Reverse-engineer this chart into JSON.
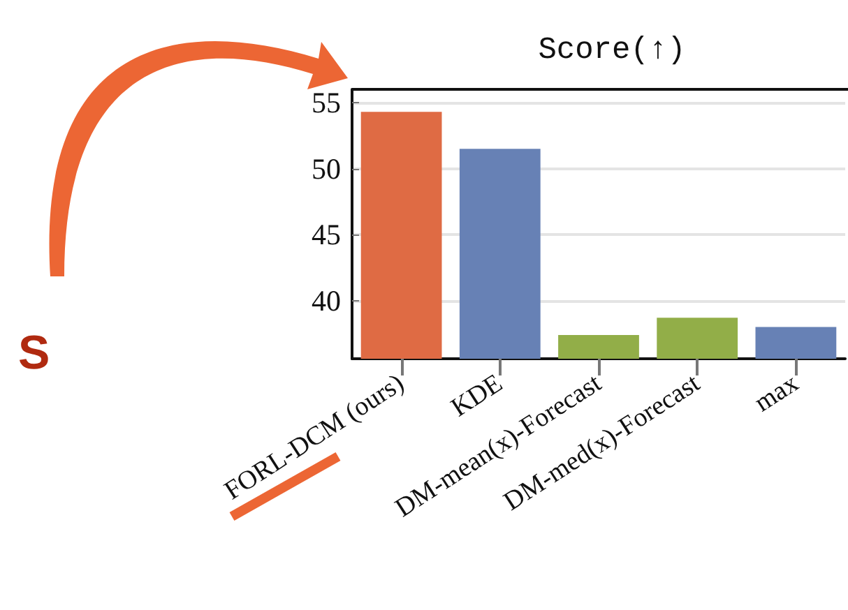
{
  "chart_data": {
    "type": "bar",
    "title": "Score(↑)",
    "categories": [
      "FORL-DCM (ours)",
      "KDE",
      "DM-mean(x)-Forecast",
      "DM-med(x)-Forecast",
      "max"
    ],
    "values": [
      54.3,
      51.5,
      37.4,
      38.7,
      38.0
    ],
    "colors": [
      "#df6b44",
      "#6781b5",
      "#92ae48",
      "#92ae48",
      "#6781b5"
    ],
    "ylim": [
      35.6,
      56
    ],
    "yticks": [
      40,
      45,
      50,
      55
    ],
    "grid": "y",
    "annotations": [
      "S"
    ]
  }
}
